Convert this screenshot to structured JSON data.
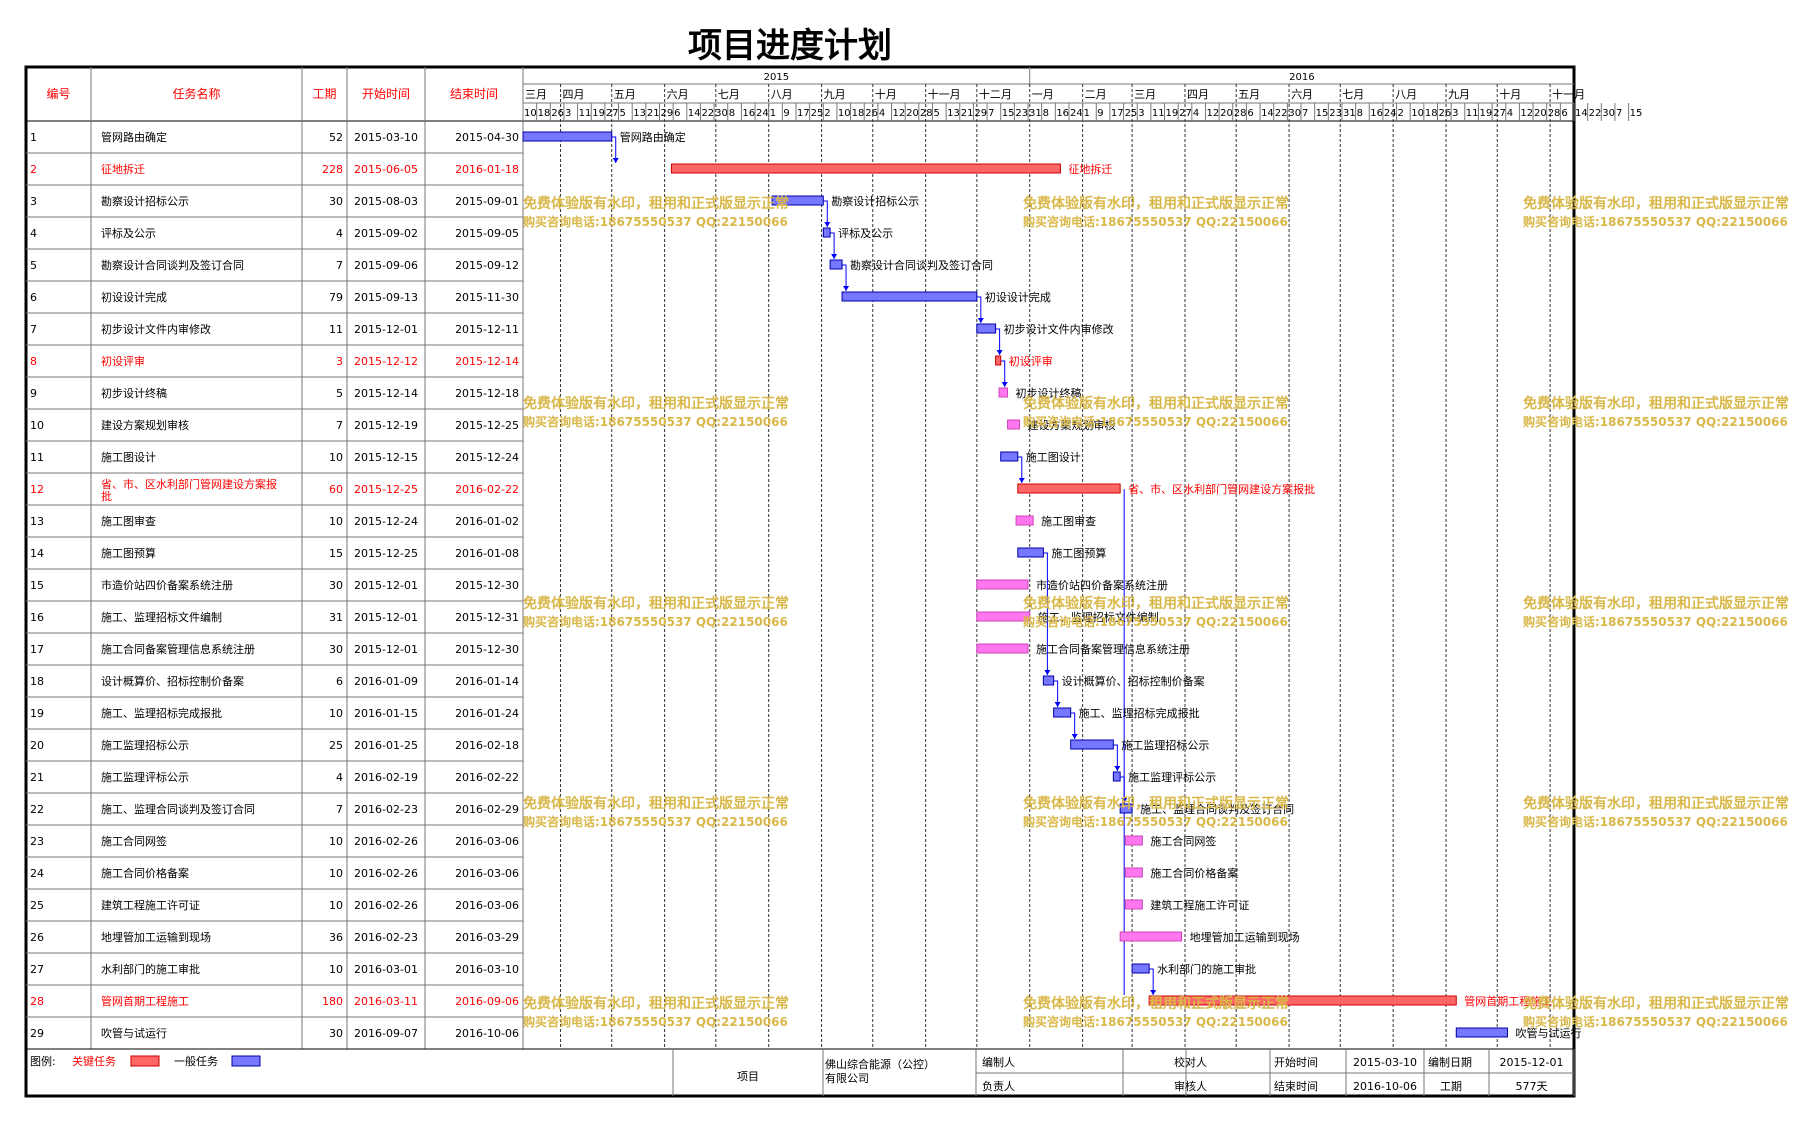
{
  "title": "项目进度计划",
  "headers": {
    "id": "编号",
    "name": "任务名称",
    "dur": "工期",
    "start": "开始时间",
    "end": "结束时间"
  },
  "years": [
    "2015",
    "2016"
  ],
  "months": [
    "三月",
    "四月",
    "五月",
    "六月",
    "七月",
    "八月",
    "九月",
    "十月",
    "十一月",
    "十二月",
    "一月",
    "二月",
    "三月",
    "四月",
    "五月",
    "六月",
    "七月",
    "八月",
    "九月",
    "十月",
    "十一月"
  ],
  "week_days": [
    "10",
    "18",
    "26",
    "3",
    "11",
    "19",
    "27",
    "5",
    "13",
    "21",
    "29",
    "6",
    "14",
    "22",
    "30",
    "8",
    "16",
    "24",
    "1",
    "9",
    "17",
    "25",
    "2",
    "10",
    "18",
    "26",
    "4",
    "12",
    "20",
    "28",
    "5",
    "13",
    "21",
    "29",
    "7",
    "15",
    "23",
    "31",
    "8",
    "16",
    "24",
    "1",
    "9",
    "17",
    "25",
    "3",
    "11",
    "19",
    "27",
    "4",
    "12",
    "20",
    "28",
    "6",
    "14",
    "22",
    "30",
    "7",
    "15",
    "23",
    "31",
    "8",
    "16",
    "24",
    "2",
    "10",
    "18",
    "26",
    "3",
    "11",
    "19",
    "27",
    "4",
    "12",
    "20",
    "28",
    "6",
    "14",
    "22",
    "30",
    "7",
    "15"
  ],
  "colors": {
    "critical": "#ff6666",
    "normal": "#7777ff",
    "parallel": "#ff77ee",
    "critical_text": "#ff0000",
    "link": "#0000ff",
    "watermark": "#d9b84a"
  },
  "watermark": [
    "免费体验版有水印，租用和正式版显示正常",
    "购买咨询电话:18675550537 QQ:22150066"
  ],
  "legend": {
    "label": "图例:",
    "critical": "关键任务",
    "normal": "一般任务"
  },
  "footer": {
    "project_label": "项目",
    "project_value": "佛山综合能源（公控）有限公司",
    "editor": "编制人",
    "owner": "负责人",
    "checker": "校对人",
    "reviewer": "审核人",
    "start_label": "开始时间",
    "start_value": "2015-03-10",
    "end_label": "结束时间",
    "end_value": "2016-10-06",
    "date_label": "编制日期",
    "date_value": "2015-12-01",
    "dur_label": "工期",
    "dur_value": "577天"
  },
  "chart_data": {
    "type": "gantt",
    "axis_start": "2015-03-10",
    "axis_end": "2016-11-15",
    "tasks": [
      {
        "id": "1",
        "name": "管网路由确定",
        "dur": "52",
        "start": "2015-03-10",
        "end": "2015-04-30",
        "kind": "normal"
      },
      {
        "id": "2",
        "name": "征地拆迁",
        "dur": "228",
        "start": "2015-06-05",
        "end": "2016-01-18",
        "kind": "critical"
      },
      {
        "id": "3",
        "name": "勘察设计招标公示",
        "dur": "30",
        "start": "2015-08-03",
        "end": "2015-09-01",
        "kind": "normal"
      },
      {
        "id": "4",
        "name": "评标及公示",
        "dur": "4",
        "start": "2015-09-02",
        "end": "2015-09-05",
        "kind": "normal"
      },
      {
        "id": "5",
        "name": "勘察设计合同谈判及签订合同",
        "dur": "7",
        "start": "2015-09-06",
        "end": "2015-09-12",
        "kind": "normal"
      },
      {
        "id": "6",
        "name": "初设设计完成",
        "dur": "79",
        "start": "2015-09-13",
        "end": "2015-11-30",
        "kind": "normal"
      },
      {
        "id": "7",
        "name": "初步设计文件内审修改",
        "dur": "11",
        "start": "2015-12-01",
        "end": "2015-12-11",
        "kind": "normal"
      },
      {
        "id": "8",
        "name": "初设评审",
        "dur": "3",
        "start": "2015-12-12",
        "end": "2015-12-14",
        "kind": "critical"
      },
      {
        "id": "9",
        "name": "初步设计终稿",
        "dur": "5",
        "start": "2015-12-14",
        "end": "2015-12-18",
        "kind": "parallel"
      },
      {
        "id": "10",
        "name": "建设方案规划审核",
        "dur": "7",
        "start": "2015-12-19",
        "end": "2015-12-25",
        "kind": "parallel"
      },
      {
        "id": "11",
        "name": "施工图设计",
        "dur": "10",
        "start": "2015-12-15",
        "end": "2015-12-24",
        "kind": "normal"
      },
      {
        "id": "12",
        "name": "省、市、区水利部门管网建设方案报批",
        "dur": "60",
        "start": "2015-12-25",
        "end": "2016-02-22",
        "kind": "critical"
      },
      {
        "id": "13",
        "name": "施工图审查",
        "dur": "10",
        "start": "2015-12-24",
        "end": "2016-01-02",
        "kind": "parallel"
      },
      {
        "id": "14",
        "name": "施工图预算",
        "dur": "15",
        "start": "2015-12-25",
        "end": "2016-01-08",
        "kind": "normal"
      },
      {
        "id": "15",
        "name": "市造价站四价备案系统注册",
        "dur": "30",
        "start": "2015-12-01",
        "end": "2015-12-30",
        "kind": "parallel"
      },
      {
        "id": "16",
        "name": "施工、监理招标文件编制",
        "dur": "31",
        "start": "2015-12-01",
        "end": "2015-12-31",
        "kind": "parallel"
      },
      {
        "id": "17",
        "name": "施工合同备案管理信息系统注册",
        "dur": "30",
        "start": "2015-12-01",
        "end": "2015-12-30",
        "kind": "parallel"
      },
      {
        "id": "18",
        "name": "设计概算价、招标控制价备案",
        "dur": "6",
        "start": "2016-01-09",
        "end": "2016-01-14",
        "kind": "normal"
      },
      {
        "id": "19",
        "name": "施工、监理招标完成报批",
        "dur": "10",
        "start": "2016-01-15",
        "end": "2016-01-24",
        "kind": "normal"
      },
      {
        "id": "20",
        "name": "施工监理招标公示",
        "dur": "25",
        "start": "2016-01-25",
        "end": "2016-02-18",
        "kind": "normal"
      },
      {
        "id": "21",
        "name": "施工监理评标公示",
        "dur": "4",
        "start": "2016-02-19",
        "end": "2016-02-22",
        "kind": "normal"
      },
      {
        "id": "22",
        "name": "施工、监理合同谈判及签订合同",
        "dur": "7",
        "start": "2016-02-23",
        "end": "2016-02-29",
        "kind": "normal"
      },
      {
        "id": "23",
        "name": "施工合同网签",
        "dur": "10",
        "start": "2016-02-26",
        "end": "2016-03-06",
        "kind": "parallel"
      },
      {
        "id": "24",
        "name": "施工合同价格备案",
        "dur": "10",
        "start": "2016-02-26",
        "end": "2016-03-06",
        "kind": "parallel"
      },
      {
        "id": "25",
        "name": "建筑工程施工许可证",
        "dur": "10",
        "start": "2016-02-26",
        "end": "2016-03-06",
        "kind": "parallel"
      },
      {
        "id": "26",
        "name": "地埋管加工运输到现场",
        "dur": "36",
        "start": "2016-02-23",
        "end": "2016-03-29",
        "kind": "parallel"
      },
      {
        "id": "27",
        "name": "水利部门的施工审批",
        "dur": "10",
        "start": "2016-03-01",
        "end": "2016-03-10",
        "kind": "normal"
      },
      {
        "id": "28",
        "name": "管网首期工程施工",
        "dur": "180",
        "start": "2016-03-11",
        "end": "2016-09-06",
        "kind": "critical"
      },
      {
        "id": "29",
        "name": "吹管与试运行",
        "dur": "30",
        "start": "2016-09-07",
        "end": "2016-10-06",
        "kind": "normal"
      }
    ]
  }
}
